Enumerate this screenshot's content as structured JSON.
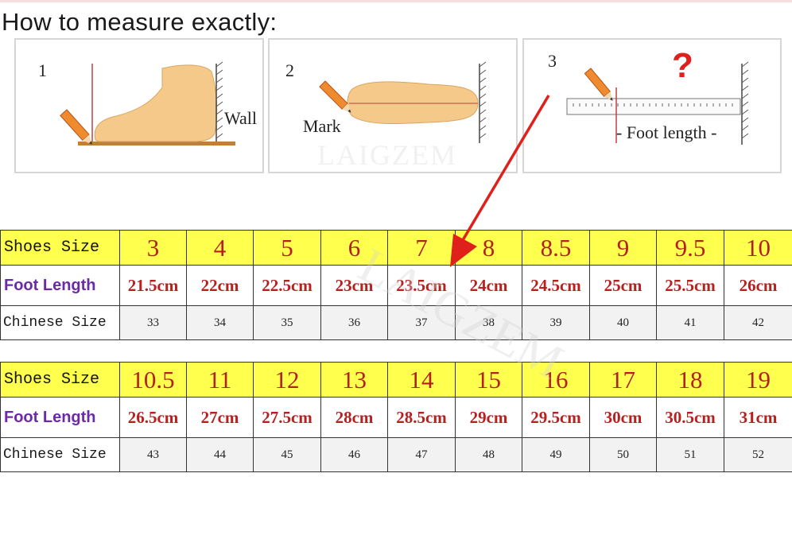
{
  "title": "How to measure exactly:",
  "steps": [
    {
      "num": "1",
      "label": "Wall"
    },
    {
      "num": "2",
      "label": "Mark"
    },
    {
      "num": "3",
      "label": "- Foot length -",
      "mark": "?"
    }
  ],
  "watermark": "LAIGZEM",
  "row_headers": {
    "shoes_size": "Shoes Size",
    "foot_length": "Foot Length",
    "chinese_size": "Chinese Size"
  },
  "tables": [
    {
      "shoes_size": [
        "3",
        "4",
        "5",
        "6",
        "7",
        "8",
        "8.5",
        "9",
        "9.5",
        "10"
      ],
      "foot_length": [
        "21.5cm",
        "22cm",
        "22.5cm",
        "23cm",
        "23.5cm",
        "24cm",
        "24.5cm",
        "25cm",
        "25.5cm",
        "26cm"
      ],
      "chinese_size": [
        "33",
        "34",
        "35",
        "36",
        "37",
        "38",
        "39",
        "40",
        "41",
        "42"
      ]
    },
    {
      "shoes_size": [
        "10.5",
        "11",
        "12",
        "13",
        "14",
        "15",
        "16",
        "17",
        "18",
        "19"
      ],
      "foot_length": [
        "26.5cm",
        "27cm",
        "27.5cm",
        "28cm",
        "28.5cm",
        "29cm",
        "29.5cm",
        "30cm",
        "30.5cm",
        "31cm"
      ],
      "chinese_size": [
        "43",
        "44",
        "45",
        "46",
        "47",
        "48",
        "49",
        "50",
        "51",
        "52"
      ]
    }
  ],
  "colors": {
    "highlight_row": "#ffff4d",
    "size_text": "#b42020",
    "foot_length_header": "#6b2aa6",
    "arrow": "#e0201b"
  }
}
